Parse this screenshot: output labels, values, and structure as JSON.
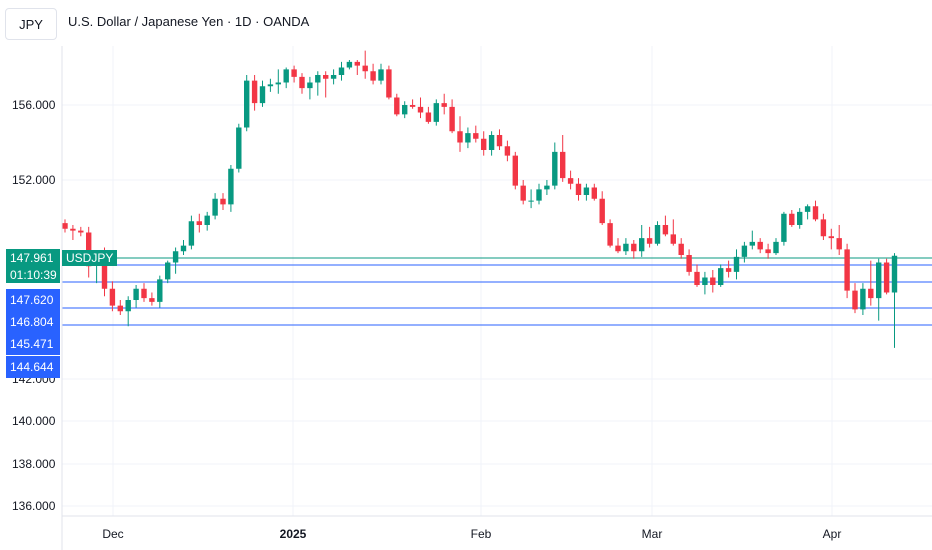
{
  "header": {
    "symbol": "JPY",
    "title": "U.S. Dollar / Japanese Yen · 1D · OANDA"
  },
  "colors": {
    "up": "#089981",
    "down": "#f23645",
    "grid": "#f0f3fa",
    "level_line": "#2962ff",
    "price_line": "#089981"
  },
  "tags": {
    "last_price": "147.961",
    "countdown": "01:10:39",
    "symbol_label": "USDJPY",
    "levels": [
      "147.620",
      "146.804",
      "145.471",
      "144.644"
    ]
  },
  "chart_data": {
    "type": "candlestick",
    "y_ticks": [
      "156.000",
      "152.000",
      "142.000",
      "140.000",
      "138.000",
      "136.000"
    ],
    "x_ticks": [
      "Dec",
      "2025",
      "Feb",
      "Mar",
      "Apr"
    ],
    "price_levels": [
      147.62,
      146.804,
      145.471,
      144.644
    ],
    "last_price": 147.961,
    "ohlc": [
      [
        149.7,
        149.9,
        149.2,
        149.4
      ],
      [
        149.4,
        149.6,
        148.8,
        149.3
      ],
      [
        149.3,
        149.5,
        149.0,
        149.2
      ],
      [
        149.2,
        149.5,
        146.8,
        147.4
      ],
      [
        147.5,
        148.2,
        146.5,
        148.0
      ],
      [
        148.0,
        148.4,
        145.8,
        146.2
      ],
      [
        146.2,
        146.6,
        145.0,
        145.3
      ],
      [
        145.3,
        145.6,
        144.8,
        145.0
      ],
      [
        145.0,
        145.8,
        144.2,
        145.6
      ],
      [
        145.6,
        146.4,
        145.2,
        146.2
      ],
      [
        146.2,
        146.5,
        145.5,
        145.7
      ],
      [
        145.7,
        146.0,
        145.3,
        145.5
      ],
      [
        145.5,
        146.9,
        145.2,
        146.7
      ],
      [
        146.7,
        147.7,
        146.5,
        147.6
      ],
      [
        147.6,
        148.4,
        147.0,
        148.2
      ],
      [
        148.2,
        148.8,
        148.0,
        148.5
      ],
      [
        148.5,
        150.1,
        148.3,
        149.8
      ],
      [
        149.8,
        150.2,
        149.2,
        149.6
      ],
      [
        149.6,
        150.3,
        149.3,
        150.1
      ],
      [
        150.1,
        151.3,
        149.9,
        151.0
      ],
      [
        151.0,
        151.3,
        150.4,
        150.7
      ],
      [
        150.7,
        152.8,
        150.3,
        152.6
      ],
      [
        152.6,
        155.0,
        152.4,
        154.8
      ],
      [
        154.8,
        157.6,
        154.6,
        157.3
      ],
      [
        157.3,
        157.6,
        155.7,
        156.1
      ],
      [
        156.1,
        157.3,
        155.9,
        157.0
      ],
      [
        157.0,
        157.4,
        156.7,
        157.1
      ],
      [
        157.1,
        157.9,
        156.6,
        157.2
      ],
      [
        157.2,
        158.0,
        156.9,
        157.9
      ],
      [
        157.9,
        158.1,
        157.2,
        157.5
      ],
      [
        157.5,
        157.7,
        156.6,
        156.9
      ],
      [
        156.9,
        157.5,
        156.3,
        157.2
      ],
      [
        157.2,
        157.8,
        156.5,
        157.6
      ],
      [
        157.6,
        157.8,
        156.4,
        157.4
      ],
      [
        157.4,
        157.9,
        157.1,
        157.6
      ],
      [
        157.6,
        158.3,
        157.3,
        158.0
      ],
      [
        158.0,
        158.4,
        157.9,
        158.3
      ],
      [
        158.3,
        158.4,
        157.6,
        158.1
      ],
      [
        158.1,
        158.9,
        157.4,
        157.8
      ],
      [
        157.8,
        158.2,
        157.1,
        157.3
      ],
      [
        157.3,
        158.2,
        157.1,
        157.9
      ],
      [
        157.9,
        158.1,
        156.3,
        156.4
      ],
      [
        156.4,
        156.6,
        155.4,
        155.5
      ],
      [
        155.5,
        156.2,
        155.3,
        156.0
      ],
      [
        156.0,
        156.3,
        155.8,
        155.9
      ],
      [
        155.9,
        156.4,
        155.3,
        155.6
      ],
      [
        155.6,
        155.9,
        155.0,
        155.1
      ],
      [
        155.1,
        156.3,
        154.9,
        156.1
      ],
      [
        156.1,
        156.6,
        155.5,
        155.9
      ],
      [
        155.9,
        156.3,
        154.5,
        154.6
      ],
      [
        154.6,
        155.4,
        153.5,
        154.0
      ],
      [
        154.0,
        154.8,
        153.7,
        154.5
      ],
      [
        154.5,
        154.9,
        154.0,
        154.2
      ],
      [
        154.2,
        154.6,
        153.3,
        153.6
      ],
      [
        153.6,
        154.6,
        153.3,
        154.4
      ],
      [
        154.4,
        154.7,
        153.6,
        153.8
      ],
      [
        153.8,
        154.1,
        153.0,
        153.3
      ],
      [
        153.3,
        153.5,
        151.5,
        151.7
      ],
      [
        151.7,
        152.0,
        150.7,
        150.9
      ],
      [
        150.9,
        151.5,
        150.5,
        150.9
      ],
      [
        150.9,
        151.8,
        150.7,
        151.5
      ],
      [
        151.5,
        152.0,
        151.2,
        151.7
      ],
      [
        151.7,
        154.0,
        151.5,
        153.5
      ],
      [
        153.5,
        154.4,
        151.9,
        152.1
      ],
      [
        152.1,
        152.5,
        151.5,
        151.8
      ],
      [
        151.8,
        152.1,
        150.9,
        151.2
      ],
      [
        151.2,
        151.8,
        150.9,
        151.6
      ],
      [
        151.6,
        151.8,
        150.9,
        151.0
      ],
      [
        151.0,
        151.4,
        149.6,
        149.7
      ],
      [
        149.7,
        149.9,
        148.4,
        148.5
      ],
      [
        148.5,
        148.9,
        148.1,
        148.2
      ],
      [
        148.2,
        148.9,
        148.0,
        148.6
      ],
      [
        148.6,
        148.8,
        147.8,
        148.2
      ],
      [
        148.2,
        149.6,
        147.9,
        148.9
      ],
      [
        148.9,
        149.5,
        148.4,
        148.6
      ],
      [
        148.6,
        149.8,
        148.5,
        149.6
      ],
      [
        149.6,
        150.1,
        149.0,
        149.1
      ],
      [
        149.1,
        149.9,
        148.5,
        148.6
      ],
      [
        148.6,
        148.9,
        147.8,
        148.0
      ],
      [
        148.0,
        148.3,
        146.9,
        147.1
      ],
      [
        147.1,
        147.5,
        146.3,
        146.4
      ],
      [
        146.4,
        147.1,
        145.9,
        146.8
      ],
      [
        146.8,
        147.2,
        146.0,
        146.4
      ],
      [
        146.4,
        147.5,
        146.3,
        147.3
      ],
      [
        147.3,
        147.7,
        146.8,
        147.1
      ],
      [
        147.1,
        148.3,
        146.7,
        147.9
      ],
      [
        147.9,
        148.7,
        147.6,
        148.5
      ],
      [
        148.5,
        149.3,
        148.3,
        148.7
      ],
      [
        148.7,
        148.9,
        148.1,
        148.3
      ],
      [
        148.3,
        148.6,
        147.8,
        148.1
      ],
      [
        148.1,
        148.9,
        148.0,
        148.7
      ],
      [
        148.7,
        150.3,
        148.5,
        150.2
      ],
      [
        150.2,
        150.4,
        149.5,
        149.6
      ],
      [
        149.6,
        150.5,
        149.4,
        150.3
      ],
      [
        150.3,
        150.7,
        149.9,
        150.6
      ],
      [
        150.6,
        150.9,
        149.8,
        149.9
      ],
      [
        149.9,
        150.2,
        148.8,
        149.0
      ],
      [
        149.0,
        149.4,
        148.3,
        148.9
      ],
      [
        148.9,
        149.6,
        148.0,
        148.3
      ],
      [
        148.3,
        148.6,
        145.7,
        146.1
      ],
      [
        146.1,
        146.5,
        144.9,
        145.1
      ],
      [
        145.1,
        146.5,
        144.8,
        146.2
      ],
      [
        146.2,
        147.7,
        145.3,
        145.7
      ],
      [
        145.7,
        147.8,
        144.5,
        147.6
      ],
      [
        147.6,
        147.8,
        145.9,
        146.0
      ],
      [
        146.0,
        148.1,
        143.4,
        147.96
      ]
    ]
  }
}
